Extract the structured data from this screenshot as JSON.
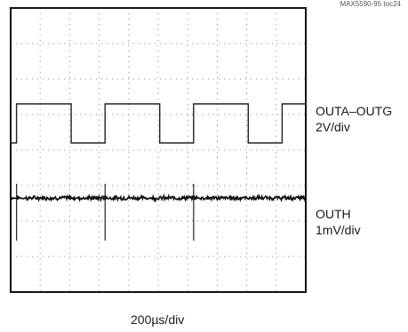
{
  "figure_id": "MAX5590-95 toc24",
  "chart_data": {
    "type": "line",
    "grid": true,
    "divisions": {
      "x": 10,
      "y": 8
    },
    "time_scale": "200µs/div",
    "series": [
      {
        "name": "OUTA–OUTG",
        "scale": "2V/div",
        "shape": "square wave",
        "x_div": [
          0,
          0.2,
          0.2,
          2.05,
          2.05,
          3.2,
          3.2,
          5.05,
          5.05,
          6.2,
          6.2,
          8.05,
          8.05,
          9.2,
          9.2,
          10
        ],
        "y_div": [
          4.2,
          4.2,
          5.3,
          5.3,
          4.2,
          4.2,
          5.3,
          5.3,
          4.2,
          4.2,
          5.3,
          5.3,
          4.2,
          4.2,
          5.3,
          5.3
        ]
      },
      {
        "name": "OUTH",
        "scale": "1mV/div",
        "shape": "flat with glitches",
        "baseline_div": 2.65,
        "glitch_x_div": [
          0.2,
          3.2,
          6.2
        ],
        "glitch_amplitude_div": [
          -1.2,
          0.4
        ]
      }
    ]
  }
}
